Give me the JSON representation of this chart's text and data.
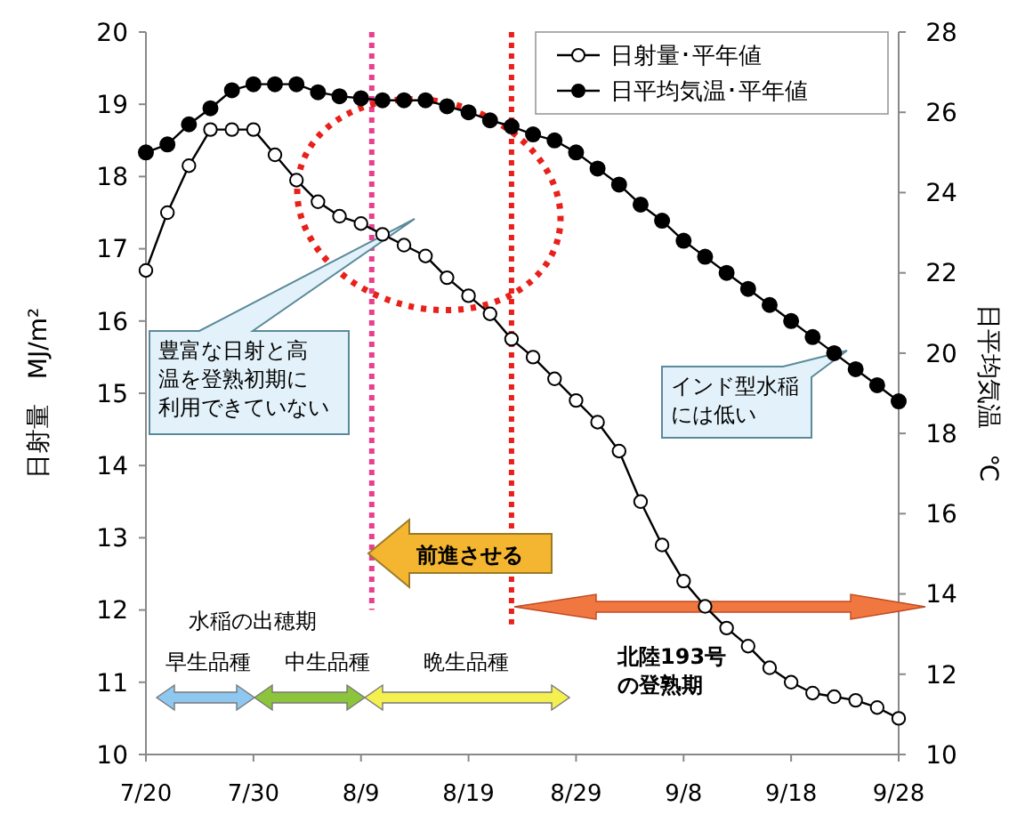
{
  "chart_data": {
    "type": "line",
    "x": [
      "--07-20",
      "--07-22",
      "--07-24",
      "--07-26",
      "--07-28",
      "--07-30",
      "--08-01",
      "--08-03",
      "--08-05",
      "--08-07",
      "--08-09",
      "--08-11",
      "--08-13",
      "--08-15",
      "--08-17",
      "--08-19",
      "--08-21",
      "--08-23",
      "--08-25",
      "--08-27",
      "--08-29",
      "--08-31",
      "--09-02",
      "--09-04",
      "--09-06",
      "--09-08",
      "--09-10",
      "--09-12",
      "--09-14",
      "--09-16",
      "--09-18",
      "--09-20",
      "--09-22",
      "--09-24",
      "--09-26",
      "--09-28"
    ],
    "series": [
      {
        "name": "日射量･平年値",
        "color": "#000000",
        "marker": "circle",
        "values": [
          16.7,
          17.5,
          18.15,
          18.65,
          18.65,
          18.65,
          18.3,
          17.95,
          17.65,
          17.45,
          17.35,
          17.2,
          17.05,
          16.9,
          16.6,
          16.35,
          16.1,
          15.75,
          15.5,
          15.2,
          14.9,
          14.6,
          14.2,
          13.5,
          12.9,
          12.4,
          12.05,
          11.75,
          11.5,
          11.2,
          11.0,
          10.85,
          10.8,
          10.75,
          10.65,
          10.5
        ]
      },
      {
        "name": "日平均気温･平年値",
        "color": "#000000",
        "marker": "circle",
        "axis": "y2",
        "values": [
          25.0,
          25.2,
          25.7,
          26.1,
          26.55,
          26.7,
          26.7,
          26.7,
          26.5,
          26.4,
          26.35,
          26.3,
          26.3,
          26.3,
          26.15,
          26.0,
          25.8,
          25.65,
          25.45,
          25.3,
          25.0,
          24.6,
          24.2,
          23.7,
          23.3,
          22.8,
          22.4,
          22.0,
          21.6,
          21.2,
          20.8,
          20.4,
          20.0,
          19.6,
          19.2,
          18.8
        ]
      }
    ],
    "ylabel": "日射量　MJ/m²",
    "y2label": "日平均気温　℃",
    "xlim": [
      "--07-20",
      "--09-28"
    ],
    "xticks": [
      {
        "value": "--07-20",
        "label": "7/20"
      },
      {
        "value": "--07-30",
        "label": "7/30"
      },
      {
        "value": "--08-09",
        "label": "8/9"
      },
      {
        "value": "--08-19",
        "label": "8/19"
      },
      {
        "value": "--08-29",
        "label": "8/29"
      },
      {
        "value": "--09-08",
        "label": "9/8"
      },
      {
        "value": "--09-18",
        "label": "9/18"
      },
      {
        "value": "--09-28",
        "label": "9/28"
      }
    ],
    "ylim": [
      10,
      20
    ],
    "yticks": [
      10,
      11,
      12,
      13,
      14,
      15,
      16,
      17,
      18,
      19,
      20
    ],
    "y2lim": [
      10,
      28
    ],
    "y2ticks": [
      10,
      12,
      14,
      16,
      18,
      20,
      22,
      24,
      26,
      28
    ],
    "ref_lines": [
      {
        "axis": "x",
        "value": "--08-10",
        "color": "#e8408c",
        "line_style": "dotted"
      },
      {
        "axis": "x",
        "value": "--08-23",
        "color": "#e8201a",
        "line_style": "dotted"
      }
    ],
    "annotations": [
      "豊富な日射と高温を登熟初期に利用できていない",
      "インド型水稲には低い",
      "前進させる",
      "水稲の出穂期",
      "早生品種",
      "中生品種",
      "晩生品種",
      "北陸193号の登熟期"
    ],
    "legend": "top right",
    "grid": false
  }
}
